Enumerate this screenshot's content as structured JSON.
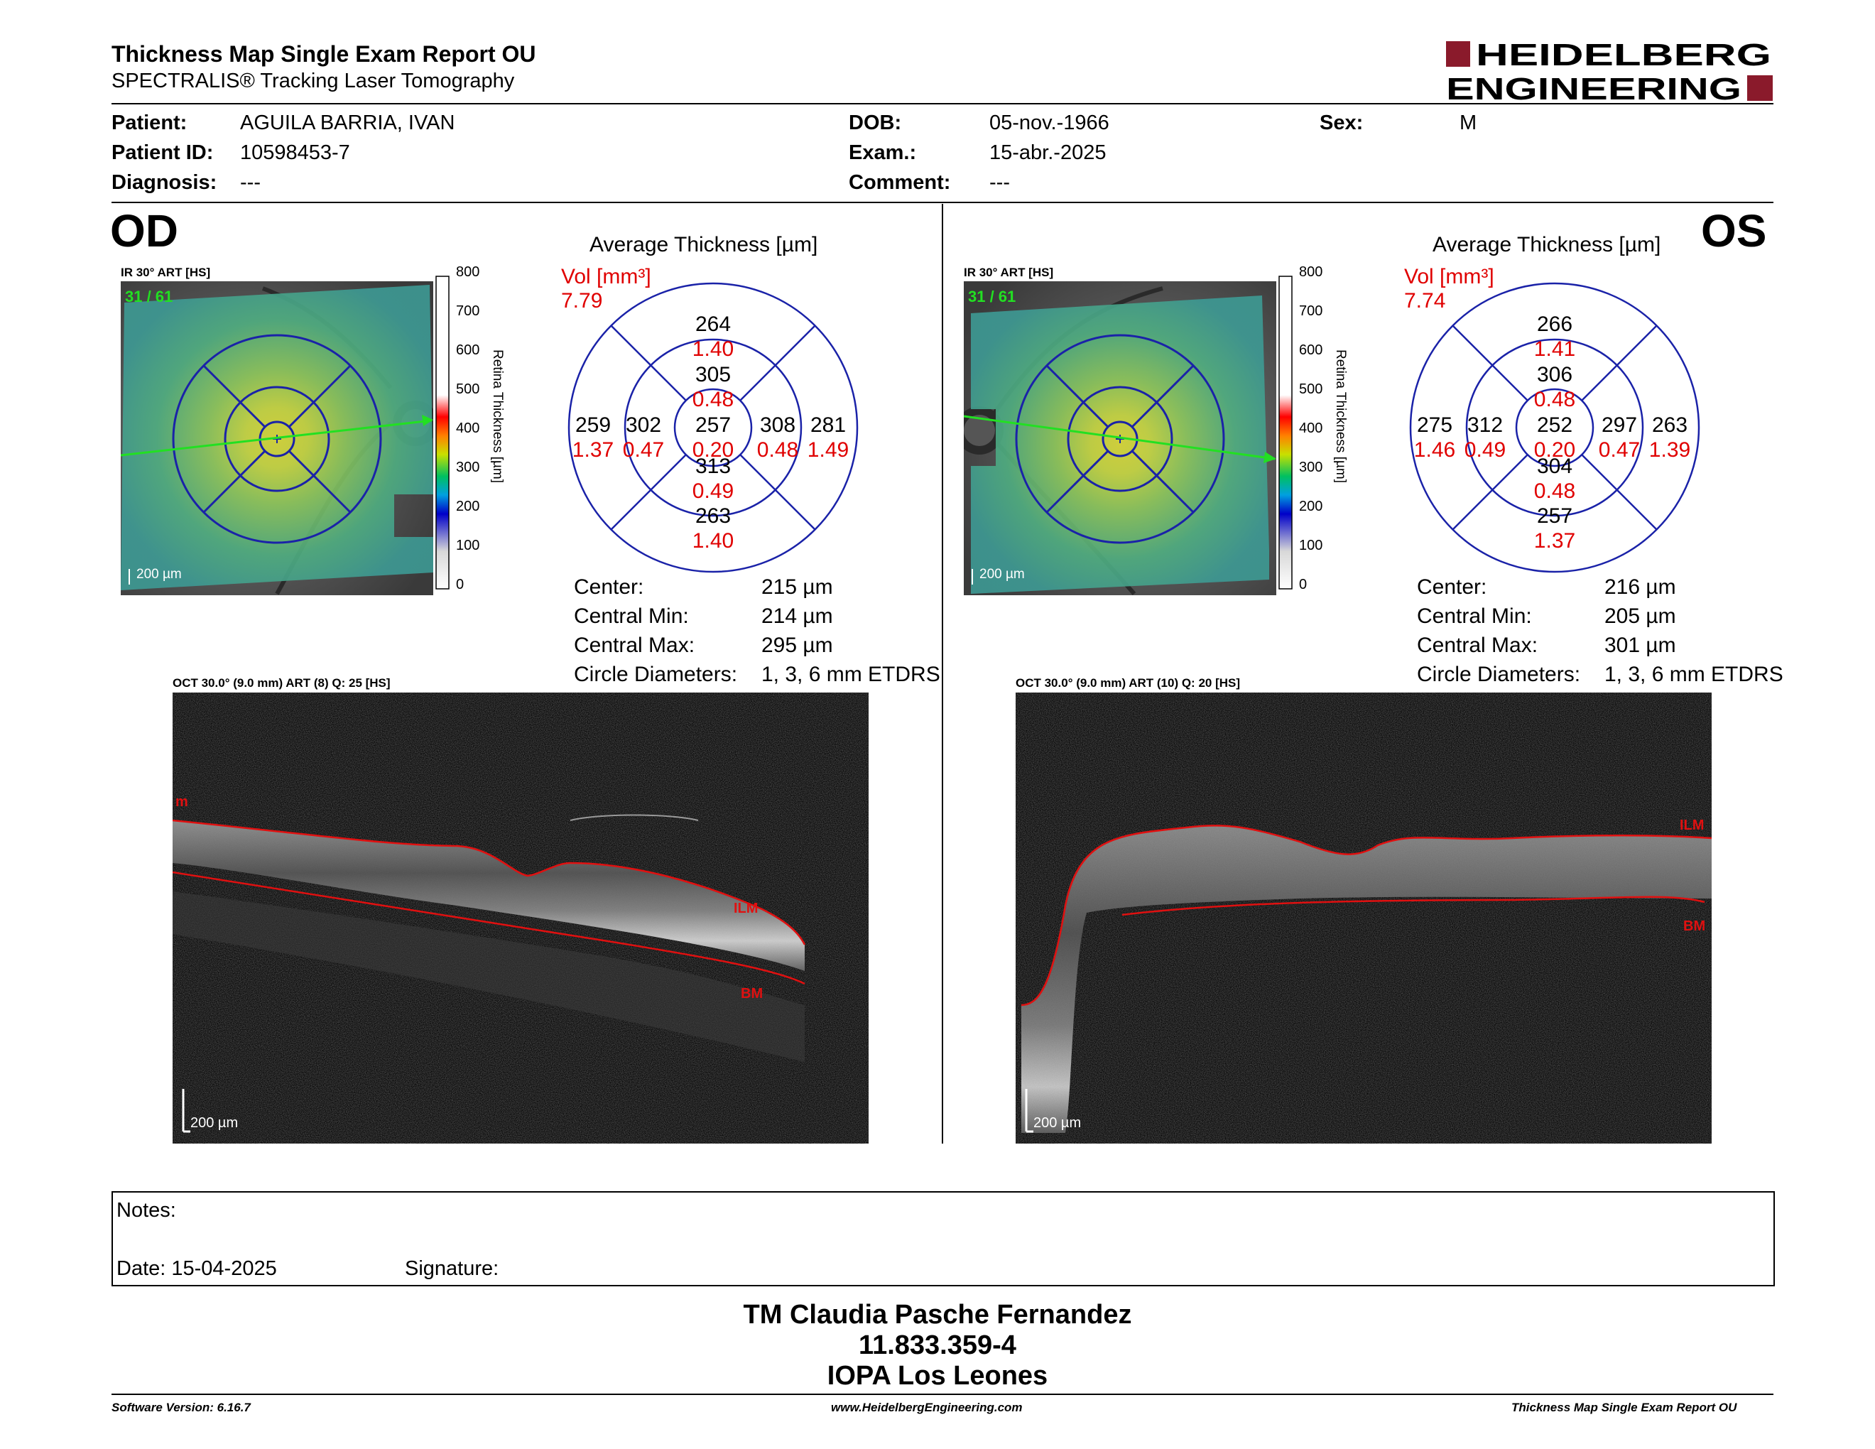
{
  "header": {
    "title": "Thickness Map Single Exam Report OU",
    "subtitle": "SPECTRALIS® Tracking Laser Tomography",
    "brand_line1": "HEIDELBERG",
    "brand_line2": "ENGINEERING",
    "brand_color": "#8a1a2b"
  },
  "patient": {
    "patient_label": "Patient:",
    "patient_value": "AGUILA BARRIA, IVAN",
    "id_label": "Patient ID:",
    "id_value": "10598453-7",
    "diagnosis_label": "Diagnosis:",
    "diagnosis_value": "---",
    "dob_label": "DOB:",
    "dob_value": "05-nov.-1966",
    "exam_label": "Exam.:",
    "exam_value": "15-abr.-2025",
    "comment_label": "Comment:",
    "comment_value": "---",
    "sex_label": "Sex:",
    "sex_value": "M"
  },
  "od": {
    "eye": "OD",
    "ir_label": "IR 30° ART [HS]",
    "frames": "31 / 61",
    "ir_scale": "200 µm",
    "avg_title": "Average Thickness [µm]",
    "vol_label": "Vol [mm³]",
    "vol_value": "7.79",
    "sectors": {
      "center_t": "257",
      "center_v": "0.20",
      "inner_sup_t": "305",
      "inner_sup_v": "0.48",
      "inner_inf_t": "313",
      "inner_inf_v": "0.49",
      "inner_left_t": "302",
      "inner_left_v": "0.47",
      "inner_right_t": "308",
      "inner_right_v": "0.48",
      "outer_sup_t": "264",
      "outer_sup_v": "1.40",
      "outer_inf_t": "263",
      "outer_inf_v": "1.40",
      "outer_left_t": "259",
      "outer_left_v": "1.37",
      "outer_right_t": "281",
      "outer_right_v": "1.49"
    },
    "stats": {
      "center_label": "Center:",
      "center_value": "215 µm",
      "min_label": "Central Min:",
      "min_value": "214 µm",
      "max_label": "Central Max:",
      "max_value": "295 µm",
      "diam_label": "Circle Diameters:",
      "diam_value": "1, 3, 6 mm ETDRS"
    },
    "oct_label": "OCT 30.0° (9.0 mm) ART (8) Q: 25 [HS]",
    "ilm": "ILM",
    "bm": "BM",
    "m": "m",
    "oct_scale": "200 µm"
  },
  "os": {
    "eye": "OS",
    "ir_label": "IR 30° ART [HS]",
    "frames": "31 / 61",
    "ir_scale": "200 µm",
    "avg_title": "Average Thickness [µm]",
    "vol_label": "Vol [mm³]",
    "vol_value": "7.74",
    "sectors": {
      "center_t": "252",
      "center_v": "0.20",
      "inner_sup_t": "306",
      "inner_sup_v": "0.48",
      "inner_inf_t": "304",
      "inner_inf_v": "0.48",
      "inner_left_t": "312",
      "inner_left_v": "0.49",
      "inner_right_t": "297",
      "inner_right_v": "0.47",
      "outer_sup_t": "266",
      "outer_sup_v": "1.41",
      "outer_inf_t": "257",
      "outer_inf_v": "1.37",
      "outer_left_t": "275",
      "outer_left_v": "1.46",
      "outer_right_t": "263",
      "outer_right_v": "1.39"
    },
    "stats": {
      "center_label": "Center:",
      "center_value": "216 µm",
      "min_label": "Central Min:",
      "min_value": "205 µm",
      "max_label": "Central Max:",
      "max_value": "301 µm",
      "diam_label": "Circle Diameters:",
      "diam_value": "1, 3, 6 mm ETDRS"
    },
    "oct_label": "OCT 30.0° (9.0 mm) ART (10) Q: 20 [HS]",
    "ilm": "ILM",
    "bm": "BM",
    "oct_scale": "200 µm"
  },
  "colorbar": {
    "ticks": [
      "800",
      "700",
      "600",
      "500",
      "400",
      "300",
      "200",
      "100",
      "0"
    ],
    "label": "Retina Thickness [µm]"
  },
  "notes": {
    "notes_label": "Notes:",
    "date_label": "Date: 15-04-2025",
    "signature_label": "Signature:"
  },
  "signature_block": {
    "line1": "TM Claudia Pasche Fernandez",
    "line2": "11.833.359-4",
    "line3": "IOPA Los Leones"
  },
  "footer": {
    "software": "Software Version: 6.16.7",
    "website": "www.HeidelbergEngineering.com",
    "report": "Thickness Map Single Exam Report OU"
  }
}
